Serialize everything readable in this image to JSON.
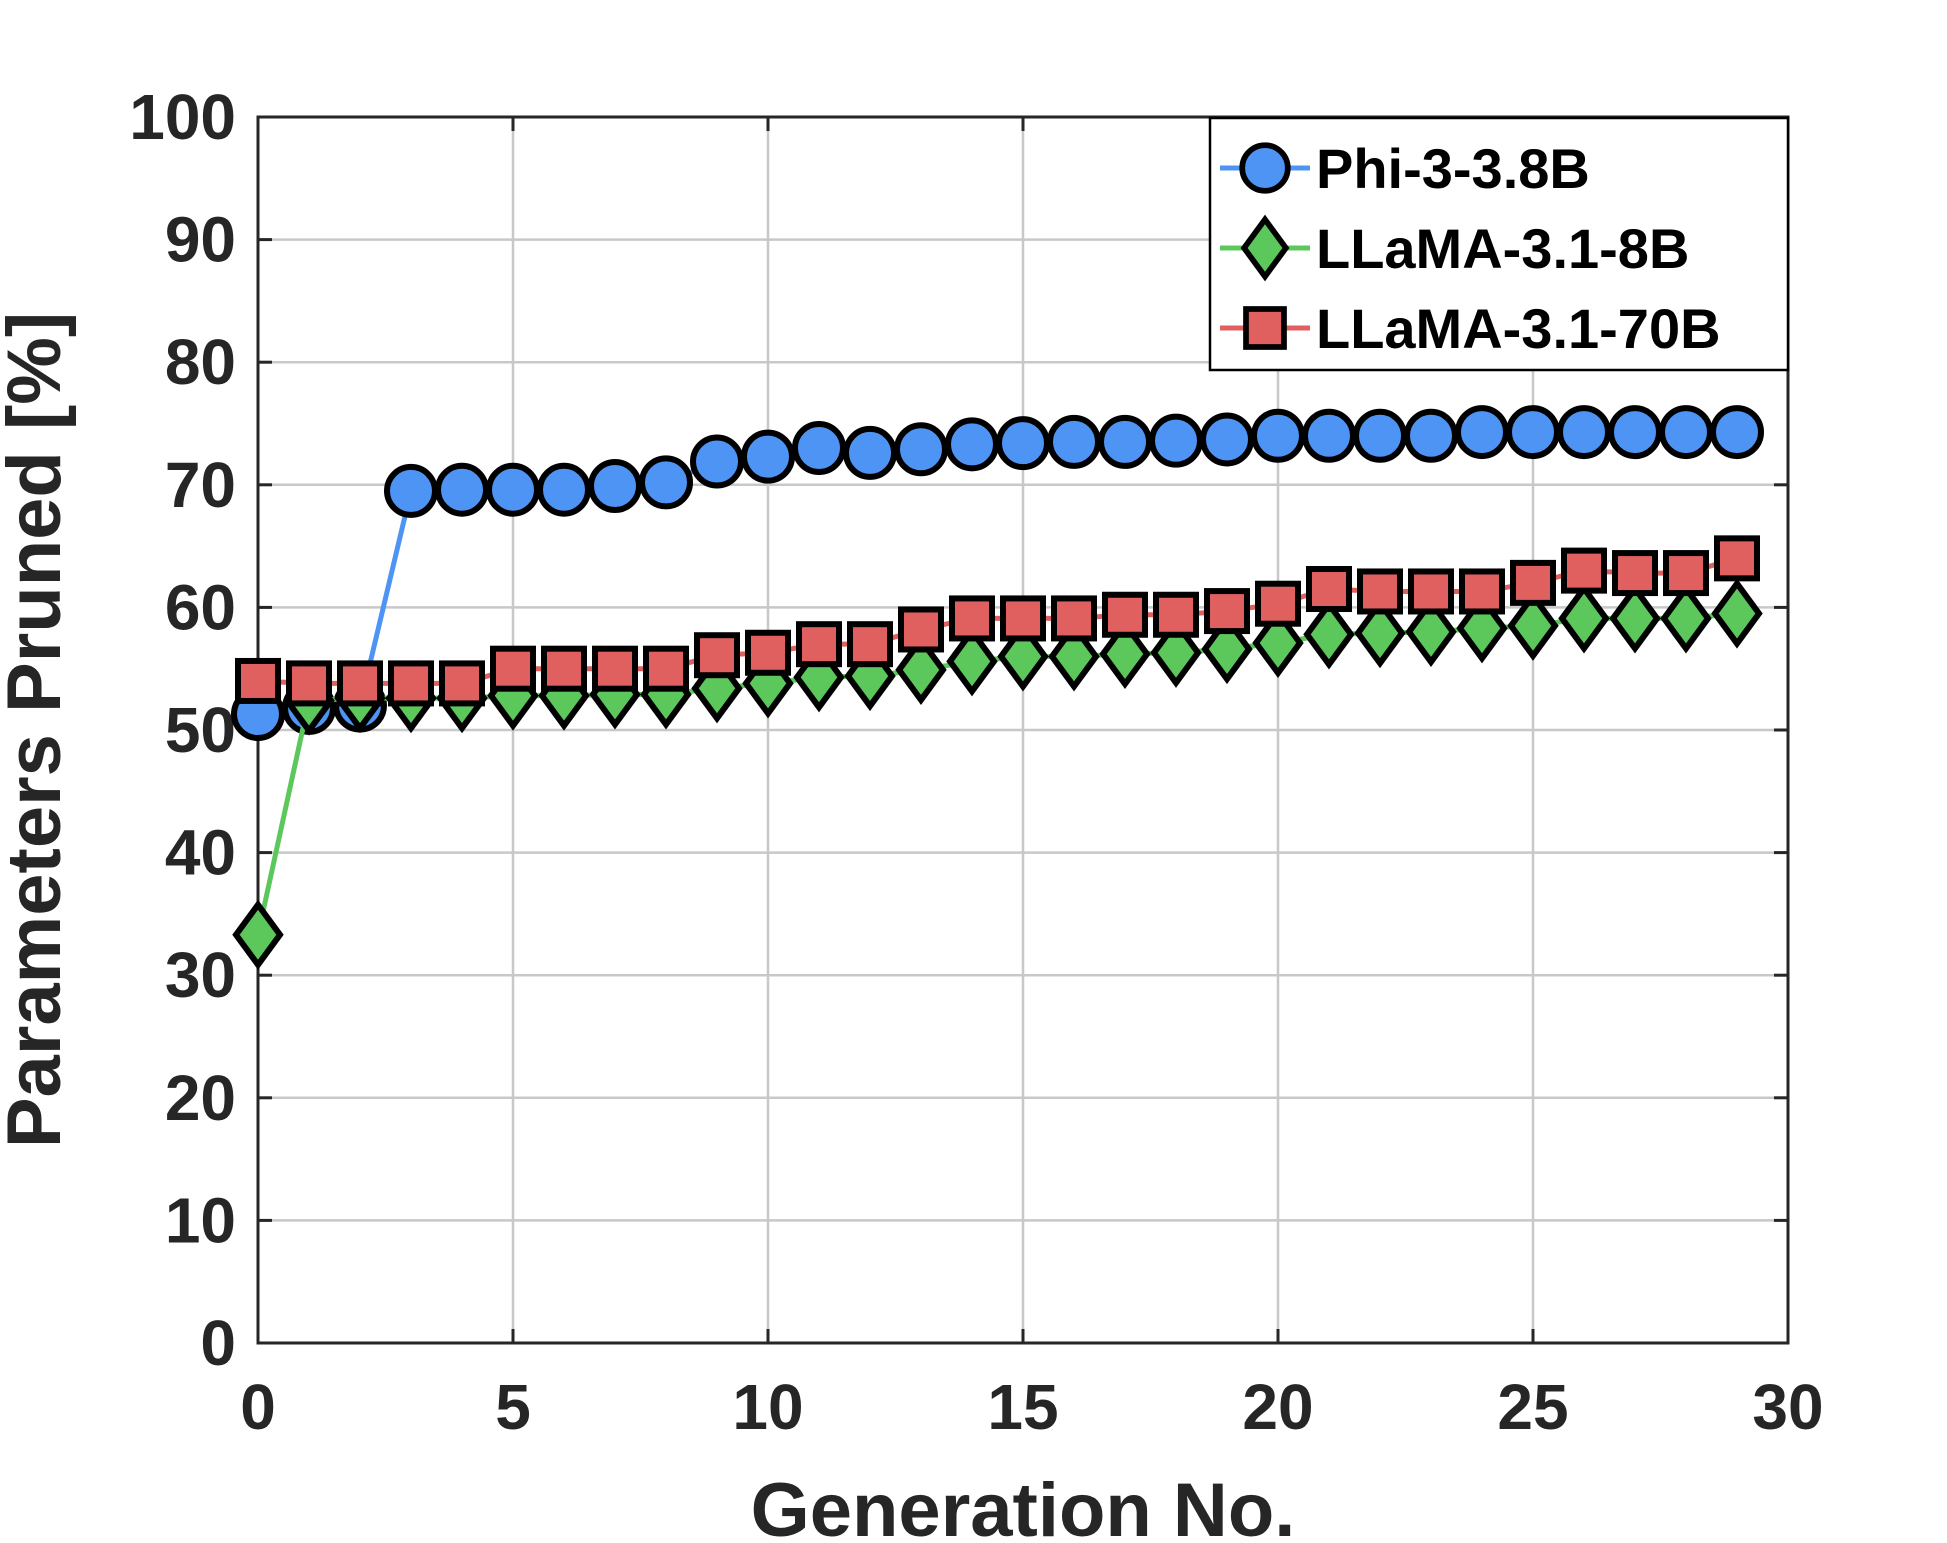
{
  "chart_data": {
    "type": "line",
    "title": "",
    "xlabel": "Generation No.",
    "ylabel": "Parameters Pruned [%]",
    "xlim": [
      0,
      30
    ],
    "ylim": [
      0,
      100
    ],
    "xticks": [
      0,
      5,
      10,
      15,
      20,
      25,
      30
    ],
    "yticks": [
      0,
      10,
      20,
      30,
      40,
      50,
      60,
      70,
      80,
      90,
      100
    ],
    "grid": true,
    "legend_position": "top-right",
    "x": [
      0,
      1,
      2,
      3,
      4,
      5,
      6,
      7,
      8,
      9,
      10,
      11,
      12,
      13,
      14,
      15,
      16,
      17,
      18,
      19,
      20,
      21,
      22,
      23,
      24,
      25,
      26,
      27,
      28,
      29
    ],
    "series": [
      {
        "name": "Phi-3-3.8B",
        "marker": "circle",
        "line_color": "#4d94f5",
        "marker_color": "#4d94f5",
        "values": [
          51.3,
          51.8,
          52.0,
          69.5,
          69.6,
          69.6,
          69.6,
          69.9,
          70.2,
          71.9,
          72.3,
          73.0,
          72.6,
          72.9,
          73.3,
          73.4,
          73.5,
          73.5,
          73.6,
          73.7,
          74.0,
          74.0,
          74.0,
          74.0,
          74.3,
          74.3,
          74.3,
          74.3,
          74.3,
          74.3
        ]
      },
      {
        "name": "LLaMA-3.1-8B",
        "marker": "diamond",
        "line_color": "#5cc85c",
        "marker_color": "#5cc85c",
        "values": [
          33.3,
          52.4,
          52.6,
          52.6,
          52.6,
          52.8,
          52.8,
          52.9,
          52.9,
          53.4,
          53.8,
          54.3,
          54.4,
          54.9,
          55.6,
          56.0,
          56.0,
          56.2,
          56.3,
          56.6,
          57.1,
          57.8,
          57.9,
          58.0,
          58.3,
          58.5,
          59.1,
          59.1,
          59.1,
          59.5
        ]
      },
      {
        "name": "LLaMA-3.1-70B",
        "marker": "square",
        "line_color": "#e06060",
        "marker_color": "#e06060",
        "values": [
          54.0,
          53.8,
          53.8,
          53.8,
          53.8,
          55.0,
          55.0,
          55.0,
          55.0,
          56.1,
          56.3,
          57.0,
          57.0,
          58.2,
          59.1,
          59.1,
          59.1,
          59.4,
          59.4,
          59.7,
          60.3,
          61.5,
          61.3,
          61.3,
          61.3,
          62.0,
          63.0,
          62.8,
          62.8,
          64.0
        ]
      }
    ]
  }
}
